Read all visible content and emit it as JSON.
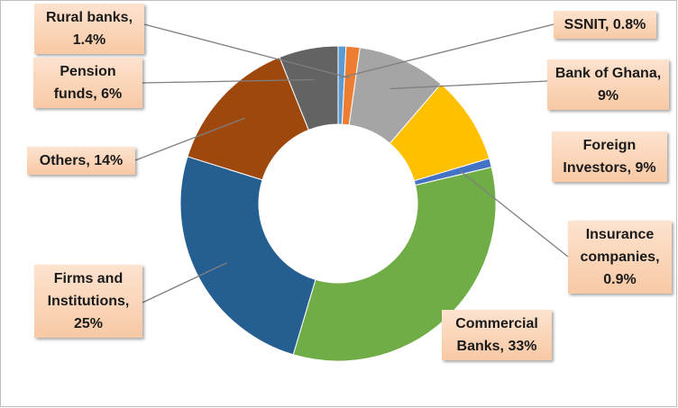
{
  "chart_data": {
    "type": "donut",
    "value_labels": [
      "SSNIT, 0.8%",
      "Rural banks, 1.4%",
      "Bank of Ghana, 9%",
      "Foreign Investors, 9%",
      "Insurance companies, 0.9%",
      "Commercial Banks, 33%",
      "Firms and Institutions, 25%",
      "Others, 14%",
      "Pension funds, 6%"
    ],
    "values": [
      0.8,
      1.4,
      9,
      9,
      0.9,
      33,
      25,
      14,
      6
    ],
    "colors": [
      "#5b9bd5",
      "#ed7d31",
      "#a5a5a5",
      "#ffc000",
      "#4472c4",
      "#70ad47",
      "#255e91",
      "#9e480e",
      "#636363"
    ]
  }
}
